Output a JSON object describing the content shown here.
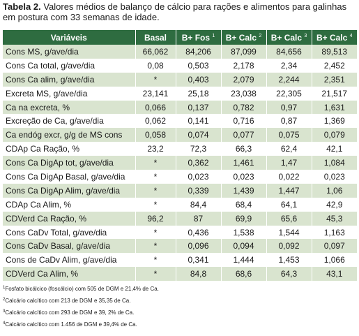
{
  "caption": {
    "label": "Tabela 2.",
    "text": "Valores médios de balanço de cálcio para rações e alimentos para galinhas em postura com 33 semanas de idade."
  },
  "table": {
    "headers": [
      {
        "text": "Variáveis",
        "sup": ""
      },
      {
        "text": "Basal",
        "sup": ""
      },
      {
        "text": "B+ Fos",
        "sup": "1"
      },
      {
        "text": "B+ Calc",
        "sup": "2"
      },
      {
        "text": "B+ Calc",
        "sup": "3"
      },
      {
        "text": "B+ Calc",
        "sup": "4"
      }
    ],
    "rows": [
      [
        "Cons MS, g/ave/dia",
        "66,062",
        "84,206",
        "87,099",
        "84,656",
        "89,513"
      ],
      [
        "Cons Ca total, g/ave/dia",
        "0,08",
        "0,503",
        "2,178",
        "2,34",
        "2,452"
      ],
      [
        "Cons Ca alim, g/ave/dia",
        "*",
        "0,403",
        "2,079",
        "2,244",
        "2,351"
      ],
      [
        "Excreta MS, g/ave/dia",
        "23,141",
        "25,18",
        "23,038",
        "22,305",
        "21,517"
      ],
      [
        "Ca na excreta, %",
        "0,066",
        "0,137",
        "0,782",
        "0,97",
        "1,631"
      ],
      [
        "Excreção de Ca, g/ave/dia",
        "0,062",
        "0,141",
        "0,716",
        "0,87",
        "1,369"
      ],
      [
        "Ca endóg excr, g/g de MS cons",
        "0,058",
        "0,074",
        "0,077",
        "0,075",
        "0,079"
      ],
      [
        "CDAp Ca Ração, %",
        "23,2",
        "72,3",
        "66,3",
        "62,4",
        "42,1"
      ],
      [
        "Cons Ca DigAp tot, g/ave/dia",
        "*",
        "0,362",
        "1,461",
        "1,47",
        "1,084"
      ],
      [
        "Cons Ca DigAp Basal, g/ave/dia",
        "*",
        "0,023",
        "0,023",
        "0,022",
        "0,023"
      ],
      [
        "Cons Ca DigAp Alim, g/ave/dia",
        "*",
        "0,339",
        "1,439",
        "1,447",
        "1,06"
      ],
      [
        "CDAp Ca Alim, %",
        "*",
        "84,4",
        "68,4",
        "64,1",
        "42,9"
      ],
      [
        "CDVerd Ca Ração, %",
        "96,2",
        "87",
        "69,9",
        "65,6",
        "45,3"
      ],
      [
        "Cons CaDv Total, g/ave/dia",
        "*",
        "0,436",
        "1,538",
        "1,544",
        "1,163"
      ],
      [
        "Cons CaDv Basal, g/ave/dia",
        "*",
        "0,096",
        "0,094",
        "0,092",
        "0,097"
      ],
      [
        "Cons de CaDv Alim, g/ave/dia",
        "*",
        "0,341",
        "1,444",
        "1,453",
        "1,066"
      ],
      [
        "CDVerd Ca Alim, %",
        "*",
        "84,8",
        "68,6",
        "64,3",
        "43,1"
      ]
    ]
  },
  "footnotes": [
    {
      "sup": "1",
      "text": "Fosfato bicálcico (foscálcio) com 505 de DGM e 21,4% de Ca."
    },
    {
      "sup": "2",
      "text": "Calcário calcítico com 213 de DGM e 35,35 de Ca."
    },
    {
      "sup": "3",
      "text": "Calcário calcítico com 293 de DGM e 39, 2% de Ca."
    },
    {
      "sup": "4",
      "text": "Calcário calcítico com 1.456 de DGM e 39,4% de Ca."
    }
  ],
  "colors": {
    "header_bg": "#2e6c40",
    "row_alt_bg": "#d9e4cf"
  }
}
